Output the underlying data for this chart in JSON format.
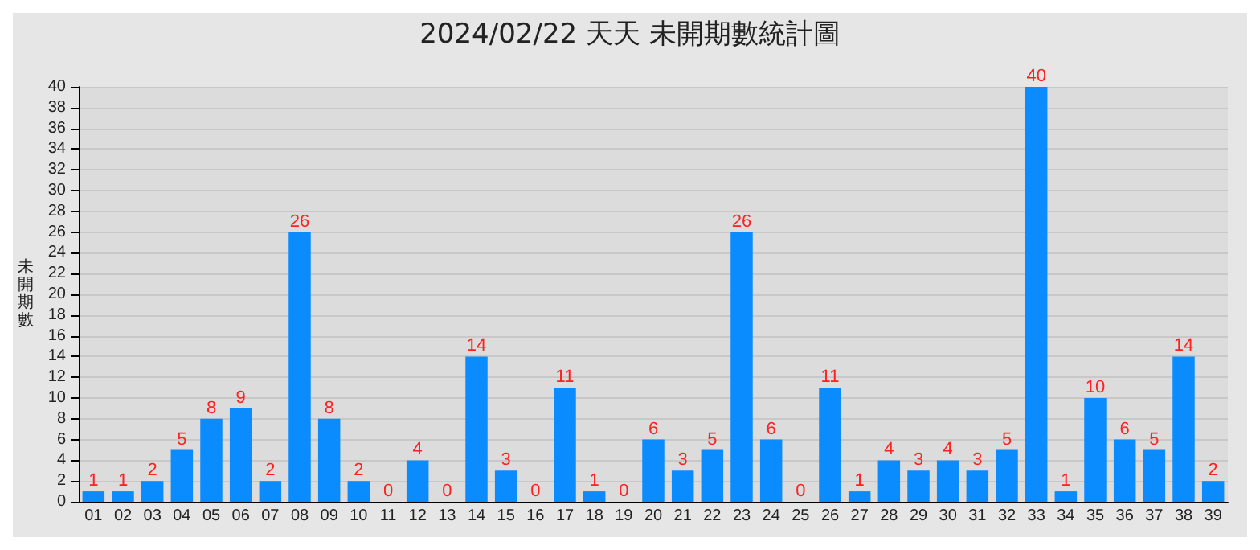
{
  "chart_data": {
    "type": "bar",
    "title": "2024/02/22 天天 未開期數統計圖",
    "ylabel": "未開期數",
    "categories": [
      "01",
      "02",
      "03",
      "04",
      "05",
      "06",
      "07",
      "08",
      "09",
      "10",
      "11",
      "12",
      "13",
      "14",
      "15",
      "16",
      "17",
      "18",
      "19",
      "20",
      "21",
      "22",
      "23",
      "24",
      "25",
      "26",
      "27",
      "28",
      "29",
      "30",
      "31",
      "32",
      "33",
      "34",
      "35",
      "36",
      "37",
      "38",
      "39"
    ],
    "values": [
      1,
      1,
      2,
      5,
      8,
      9,
      2,
      26,
      8,
      2,
      0,
      4,
      0,
      14,
      3,
      0,
      11,
      1,
      0,
      6,
      3,
      5,
      26,
      6,
      0,
      11,
      1,
      4,
      3,
      4,
      3,
      5,
      40,
      1,
      10,
      6,
      5,
      14,
      2
    ],
    "color": "#0a8cff",
    "ylim": [
      0,
      40
    ],
    "yticks": [
      0,
      2,
      4,
      6,
      8,
      10,
      12,
      14,
      16,
      18,
      20,
      22,
      24,
      26,
      28,
      30,
      32,
      34,
      36,
      38,
      40
    ],
    "grid": "y",
    "data_labels": true
  }
}
